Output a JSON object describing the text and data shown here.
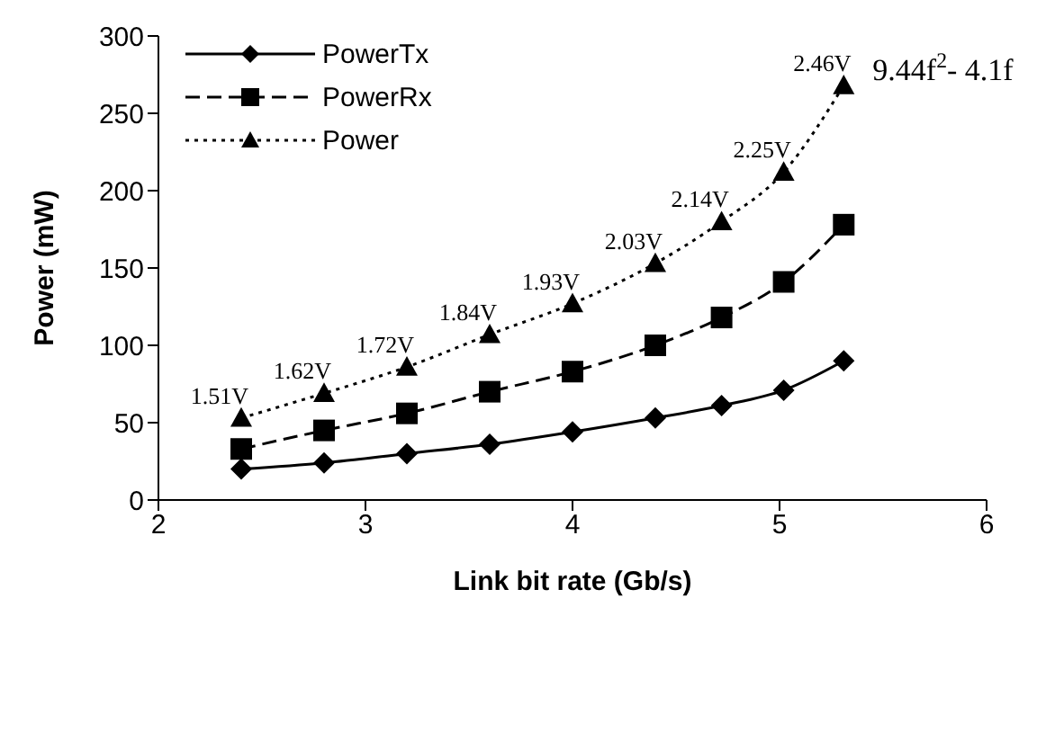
{
  "chart_data": {
    "type": "line",
    "xlabel": "Link bit rate (Gb/s)",
    "ylabel": "Power (mW)",
    "xlim": [
      2,
      6
    ],
    "xticks": [
      2,
      3,
      4,
      5,
      6
    ],
    "ylim": [
      0,
      300
    ],
    "yticks": [
      0,
      50,
      100,
      150,
      200,
      250,
      300
    ],
    "legend": "top left",
    "series": [
      {
        "name": "PowerTx",
        "color": "#000000",
        "marker": "diamond",
        "line_style": "solid",
        "x": [
          2.4,
          2.8,
          3.2,
          3.6,
          4.0,
          4.4,
          4.72,
          5.02,
          5.31
        ],
        "values": [
          20,
          24,
          30,
          36,
          44,
          53,
          61,
          71,
          90
        ]
      },
      {
        "name": "PowerRx",
        "color": "#000000",
        "marker": "square",
        "line_style": "dashed",
        "x": [
          2.4,
          2.8,
          3.2,
          3.6,
          4.0,
          4.4,
          4.72,
          5.02,
          5.31
        ],
        "values": [
          33,
          45,
          56,
          70,
          83,
          100,
          118,
          141,
          178
        ]
      },
      {
        "name": "Power",
        "color": "#000000",
        "marker": "triangle",
        "line_style": "dotted",
        "x": [
          2.4,
          2.8,
          3.2,
          3.6,
          4.0,
          4.4,
          4.72,
          5.02,
          5.31
        ],
        "values": [
          53,
          69,
          86,
          107,
          127,
          153,
          180,
          212,
          268
        ]
      }
    ],
    "annotations": [
      {
        "text": "1.51V",
        "x": 2.4,
        "y": 53
      },
      {
        "text": "1.62V",
        "x": 2.8,
        "y": 69
      },
      {
        "text": "1.72V",
        "x": 3.2,
        "y": 86
      },
      {
        "text": "1.84V",
        "x": 3.6,
        "y": 107
      },
      {
        "text": "1.93V",
        "x": 4.0,
        "y": 127
      },
      {
        "text": "2.03V",
        "x": 4.4,
        "y": 153
      },
      {
        "text": "2.14V",
        "x": 4.72,
        "y": 180
      },
      {
        "text": "2.25V",
        "x": 5.02,
        "y": 212
      },
      {
        "text": "2.46V",
        "x": 5.31,
        "y": 268
      },
      "9.44f$^{2}$- 4.1f"
    ]
  }
}
